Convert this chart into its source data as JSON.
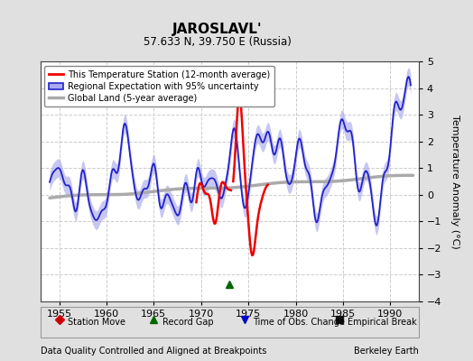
{
  "title": "JAROSLAVL'",
  "subtitle": "57.633 N, 39.750 E (Russia)",
  "ylabel": "Temperature Anomaly (°C)",
  "xlabel_left": "Data Quality Controlled and Aligned at Breakpoints",
  "xlabel_right": "Berkeley Earth",
  "ylim": [
    -4,
    5
  ],
  "xlim": [
    1953,
    1993
  ],
  "xticks": [
    1955,
    1960,
    1965,
    1970,
    1975,
    1980,
    1985,
    1990
  ],
  "yticks": [
    -4,
    -3,
    -2,
    -1,
    0,
    1,
    2,
    3,
    4,
    5
  ],
  "background_color": "#e0e0e0",
  "plot_bg_color": "#ffffff",
  "grid_color": "#cccccc",
  "blue_color": "#2222cc",
  "blue_fill": "#aaaaee",
  "red_color": "#ee0000",
  "gray_color": "#aaaaaa",
  "green_triangle_x": 1973.0,
  "green_triangle_y": -3.35,
  "legend_labels": [
    "This Temperature Station (12-month average)",
    "Regional Expectation with 95% uncertainty",
    "Global Land (5-year average)"
  ],
  "marker_legend": [
    {
      "marker": "D",
      "color": "#cc0000",
      "label": "Station Move"
    },
    {
      "marker": "^",
      "color": "#006600",
      "label": "Record Gap"
    },
    {
      "marker": "v",
      "color": "#0000cc",
      "label": "Time of Obs. Change"
    },
    {
      "marker": "s",
      "color": "#111111",
      "label": "Empirical Break"
    }
  ]
}
